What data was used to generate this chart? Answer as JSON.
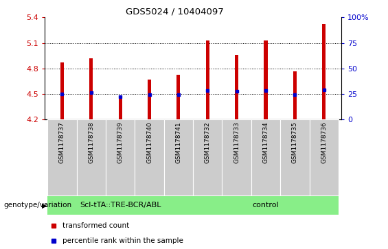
{
  "title": "GDS5024 / 10404097",
  "samples": [
    "GSM1178737",
    "GSM1178738",
    "GSM1178739",
    "GSM1178740",
    "GSM1178741",
    "GSM1178732",
    "GSM1178733",
    "GSM1178734",
    "GSM1178735",
    "GSM1178736"
  ],
  "bar_values": [
    4.87,
    4.92,
    4.46,
    4.67,
    4.73,
    5.13,
    4.96,
    5.13,
    4.77,
    5.32
  ],
  "blue_marker_values": [
    4.5,
    4.52,
    4.47,
    4.49,
    4.49,
    4.54,
    4.53,
    4.54,
    4.49,
    4.55
  ],
  "bar_color": "#cc0000",
  "blue_color": "#0000cc",
  "ymin": 4.2,
  "ymax": 5.4,
  "yticks": [
    4.2,
    4.5,
    4.8,
    5.1,
    5.4
  ],
  "ytick_labels": [
    "4.2",
    "4.5",
    "4.8",
    "5.1",
    "5.4"
  ],
  "right_yticks": [
    0,
    25,
    50,
    75,
    100
  ],
  "right_ytick_labels": [
    "0",
    "25",
    "50",
    "75",
    "100%"
  ],
  "group1_label": "Scl-tTA::TRE-BCR/ABL",
  "group2_label": "control",
  "group1_indices": [
    0,
    1,
    2,
    3,
    4
  ],
  "group2_indices": [
    5,
    6,
    7,
    8,
    9
  ],
  "group_bg_color": "#88ee88",
  "xlabel_left": "genotype/variation",
  "legend_transformed": "transformed count",
  "legend_percentile": "percentile rank within the sample",
  "bar_width": 0.12,
  "left_ylabel_color": "#cc0000",
  "right_ylabel_color": "#0000cc",
  "tick_label_color_left": "#cc0000",
  "tick_label_color_right": "#0000cc",
  "xticklabels_bg": "#cccccc",
  "grid_color": "#000000",
  "grid_linestyle": "dotted",
  "figwidth": 5.65,
  "figheight": 3.63,
  "dpi": 100
}
